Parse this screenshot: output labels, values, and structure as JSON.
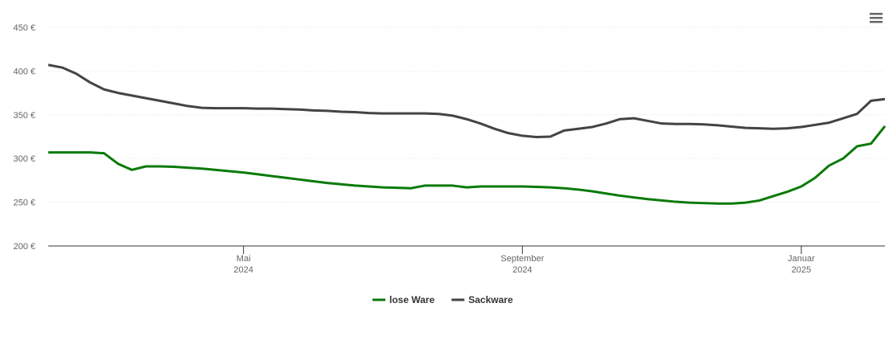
{
  "chart_data": {
    "type": "line",
    "categories": [
      null,
      null,
      null,
      null,
      null,
      null,
      null,
      null,
      null,
      null,
      null,
      null,
      null,
      null,
      "Mai 2024",
      null,
      null,
      null,
      null,
      null,
      null,
      null,
      null,
      null,
      null,
      null,
      null,
      null,
      null,
      null,
      null,
      null,
      null,
      null,
      "September 2024",
      null,
      null,
      null,
      null,
      null,
      null,
      null,
      null,
      null,
      null,
      null,
      null,
      null,
      null,
      null,
      null,
      null,
      null,
      null,
      "Januar 2025",
      null,
      null,
      null,
      null,
      null,
      null
    ],
    "series": [
      {
        "name": "lose Ware",
        "color": "#0a7a0a",
        "values": [
          307,
          307,
          307,
          307,
          306,
          294,
          287,
          291,
          291,
          290.5,
          289.5,
          288.5,
          287,
          285.5,
          284,
          282,
          280,
          278,
          276,
          274,
          272,
          270.5,
          269,
          268,
          267,
          266.5,
          266,
          269,
          269,
          269,
          267,
          268,
          268,
          268,
          268,
          267.5,
          267,
          266,
          264.5,
          262.5,
          260,
          257.5,
          255.5,
          253.5,
          252,
          250.5,
          249.5,
          249,
          248.5,
          248.5,
          249.5,
          252,
          257,
          262,
          268,
          278,
          292,
          300,
          314,
          317,
          337
        ]
      },
      {
        "name": "Sackware",
        "color": "#434348",
        "values": [
          407,
          404,
          397,
          387,
          379,
          375,
          372,
          369,
          366,
          363,
          360,
          358,
          357.5,
          357.5,
          357.5,
          357,
          357,
          356.5,
          356,
          355,
          354.5,
          353.5,
          353,
          352,
          351.5,
          351.5,
          351.5,
          351.5,
          351,
          349,
          345,
          340,
          334,
          329,
          326,
          324.5,
          325,
          332,
          334,
          336,
          340,
          345,
          346,
          343,
          340,
          339.5,
          339.5,
          339,
          338,
          336.5,
          335,
          334.5,
          334,
          334.5,
          336,
          338.5,
          341,
          346,
          351,
          366,
          368
        ]
      }
    ],
    "ylim": [
      200,
      450
    ],
    "yticks": [
      {
        "value": 200,
        "label": "200 €"
      },
      {
        "value": 250,
        "label": "250 €"
      },
      {
        "value": 300,
        "label": "300 €"
      },
      {
        "value": 350,
        "label": "350 €"
      },
      {
        "value": 400,
        "label": "400 €"
      },
      {
        "value": 450,
        "label": "450 €"
      }
    ],
    "grid": true
  }
}
